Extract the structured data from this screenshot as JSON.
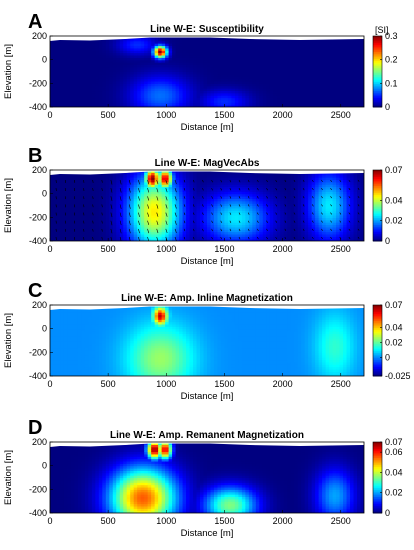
{
  "chart_data": [
    {
      "type": "heatmap",
      "panel_label": "A",
      "title": "Line W-E: Susceptibility",
      "xlabel": "Distance [m]",
      "ylabel": "Elevation [m]",
      "xlim": [
        0,
        2700
      ],
      "ylim": [
        -400,
        200
      ],
      "x_ticks": [
        "0",
        "500",
        "1000",
        "1500",
        "2000",
        "2500"
      ],
      "y_ticks": [
        "200",
        "0",
        "-200",
        "-400"
      ],
      "colorbar": {
        "unit": "[SI]",
        "range": [
          0,
          0.3
        ],
        "ticks": [
          "0.3",
          "0.2",
          "0.1",
          "0"
        ],
        "tick_values": [
          0.3,
          0.2,
          0.1,
          0
        ]
      },
      "colormap": "jet",
      "anomalies": [
        {
          "x": 950,
          "y": 70,
          "value": 0.3,
          "sx": 40,
          "sy": 35
        },
        {
          "x": 950,
          "y": -300,
          "value": 0.07,
          "sx": 180,
          "sy": 120
        },
        {
          "x": 750,
          "y": 130,
          "value": 0.05,
          "sx": 120,
          "sy": 60
        },
        {
          "x": 1500,
          "y": -350,
          "value": 0.05,
          "sx": 150,
          "sy": 70
        }
      ],
      "vectors": false
    },
    {
      "type": "heatmap",
      "panel_label": "B",
      "title": "Line W-E: MagVecAbs",
      "xlabel": "Distance [m]",
      "ylabel": "Elevation [m]",
      "xlim": [
        0,
        2700
      ],
      "ylim": [
        -400,
        200
      ],
      "x_ticks": [
        "0",
        "500",
        "1000",
        "1500",
        "2000",
        "2500"
      ],
      "y_ticks": [
        "200",
        "0",
        "-200",
        "-400"
      ],
      "colorbar": {
        "unit": "",
        "range": [
          0,
          0.07
        ],
        "ticks": [
          "0.07",
          "0.04",
          "0.02",
          "0"
        ],
        "tick_values": [
          0.07,
          0.04,
          0.02,
          0
        ]
      },
      "colormap": "jet",
      "anomalies": [
        {
          "x": 880,
          "y": 130,
          "value": 0.07,
          "sx": 45,
          "sy": 60
        },
        {
          "x": 990,
          "y": 130,
          "value": 0.065,
          "sx": 45,
          "sy": 60
        },
        {
          "x": 900,
          "y": -150,
          "value": 0.045,
          "sx": 160,
          "sy": 220
        },
        {
          "x": 1600,
          "y": -200,
          "value": 0.025,
          "sx": 200,
          "sy": 150
        },
        {
          "x": 2400,
          "y": -100,
          "value": 0.025,
          "sx": 130,
          "sy": 200
        }
      ],
      "vectors": true
    },
    {
      "type": "heatmap",
      "panel_label": "C",
      "title": "Line W-E: Amp. Inline Magnetization",
      "xlabel": "Distance [m]",
      "ylabel": "Elevation [m]",
      "xlim": [
        0,
        2700
      ],
      "ylim": [
        -400,
        200
      ],
      "x_ticks": [
        "0",
        "500",
        "1000",
        "1500",
        "2000",
        "2500"
      ],
      "y_ticks": [
        "200",
        "0",
        "-200",
        "-400"
      ],
      "colorbar": {
        "unit": "",
        "range": [
          -0.025,
          0.07
        ],
        "ticks": [
          "0.07",
          "0.04",
          "0.02",
          "0",
          "-0.025"
        ],
        "tick_values": [
          0.07,
          0.04,
          0.02,
          0,
          -0.025
        ]
      },
      "colormap": "jet",
      "anomalies": [
        {
          "x": 950,
          "y": 110,
          "value": 0.065,
          "sx": 40,
          "sy": 50
        },
        {
          "x": 950,
          "y": -250,
          "value": 0.025,
          "sx": 200,
          "sy": 200
        },
        {
          "x": 2450,
          "y": -150,
          "value": 0.015,
          "sx": 120,
          "sy": 200
        }
      ],
      "vectors": false
    },
    {
      "type": "heatmap",
      "panel_label": "D",
      "title": "Line W-E: Amp. Remanent Magnetization",
      "xlabel": "Distance [m]",
      "ylabel": "Elevation [m]",
      "xlim": [
        0,
        2700
      ],
      "ylim": [
        -400,
        200
      ],
      "x_ticks": [
        "0",
        "500",
        "1000",
        "1500",
        "2000",
        "2500"
      ],
      "y_ticks": [
        "200",
        "0",
        "-200",
        "-400"
      ],
      "colorbar": {
        "unit": "",
        "range": [
          0,
          0.07
        ],
        "ticks": [
          "0.07",
          "0.06",
          "0.04",
          "0.02",
          "0"
        ],
        "tick_values": [
          0.07,
          0.06,
          0.04,
          0.02,
          0
        ]
      },
      "colormap": "jet",
      "anomalies": [
        {
          "x": 900,
          "y": 140,
          "value": 0.07,
          "sx": 45,
          "sy": 55
        },
        {
          "x": 990,
          "y": 140,
          "value": 0.065,
          "sx": 40,
          "sy": 55
        },
        {
          "x": 800,
          "y": -270,
          "value": 0.055,
          "sx": 200,
          "sy": 180
        },
        {
          "x": 1550,
          "y": -330,
          "value": 0.035,
          "sx": 160,
          "sy": 110
        },
        {
          "x": 2450,
          "y": -250,
          "value": 0.02,
          "sx": 120,
          "sy": 160
        }
      ],
      "vectors": false
    }
  ]
}
